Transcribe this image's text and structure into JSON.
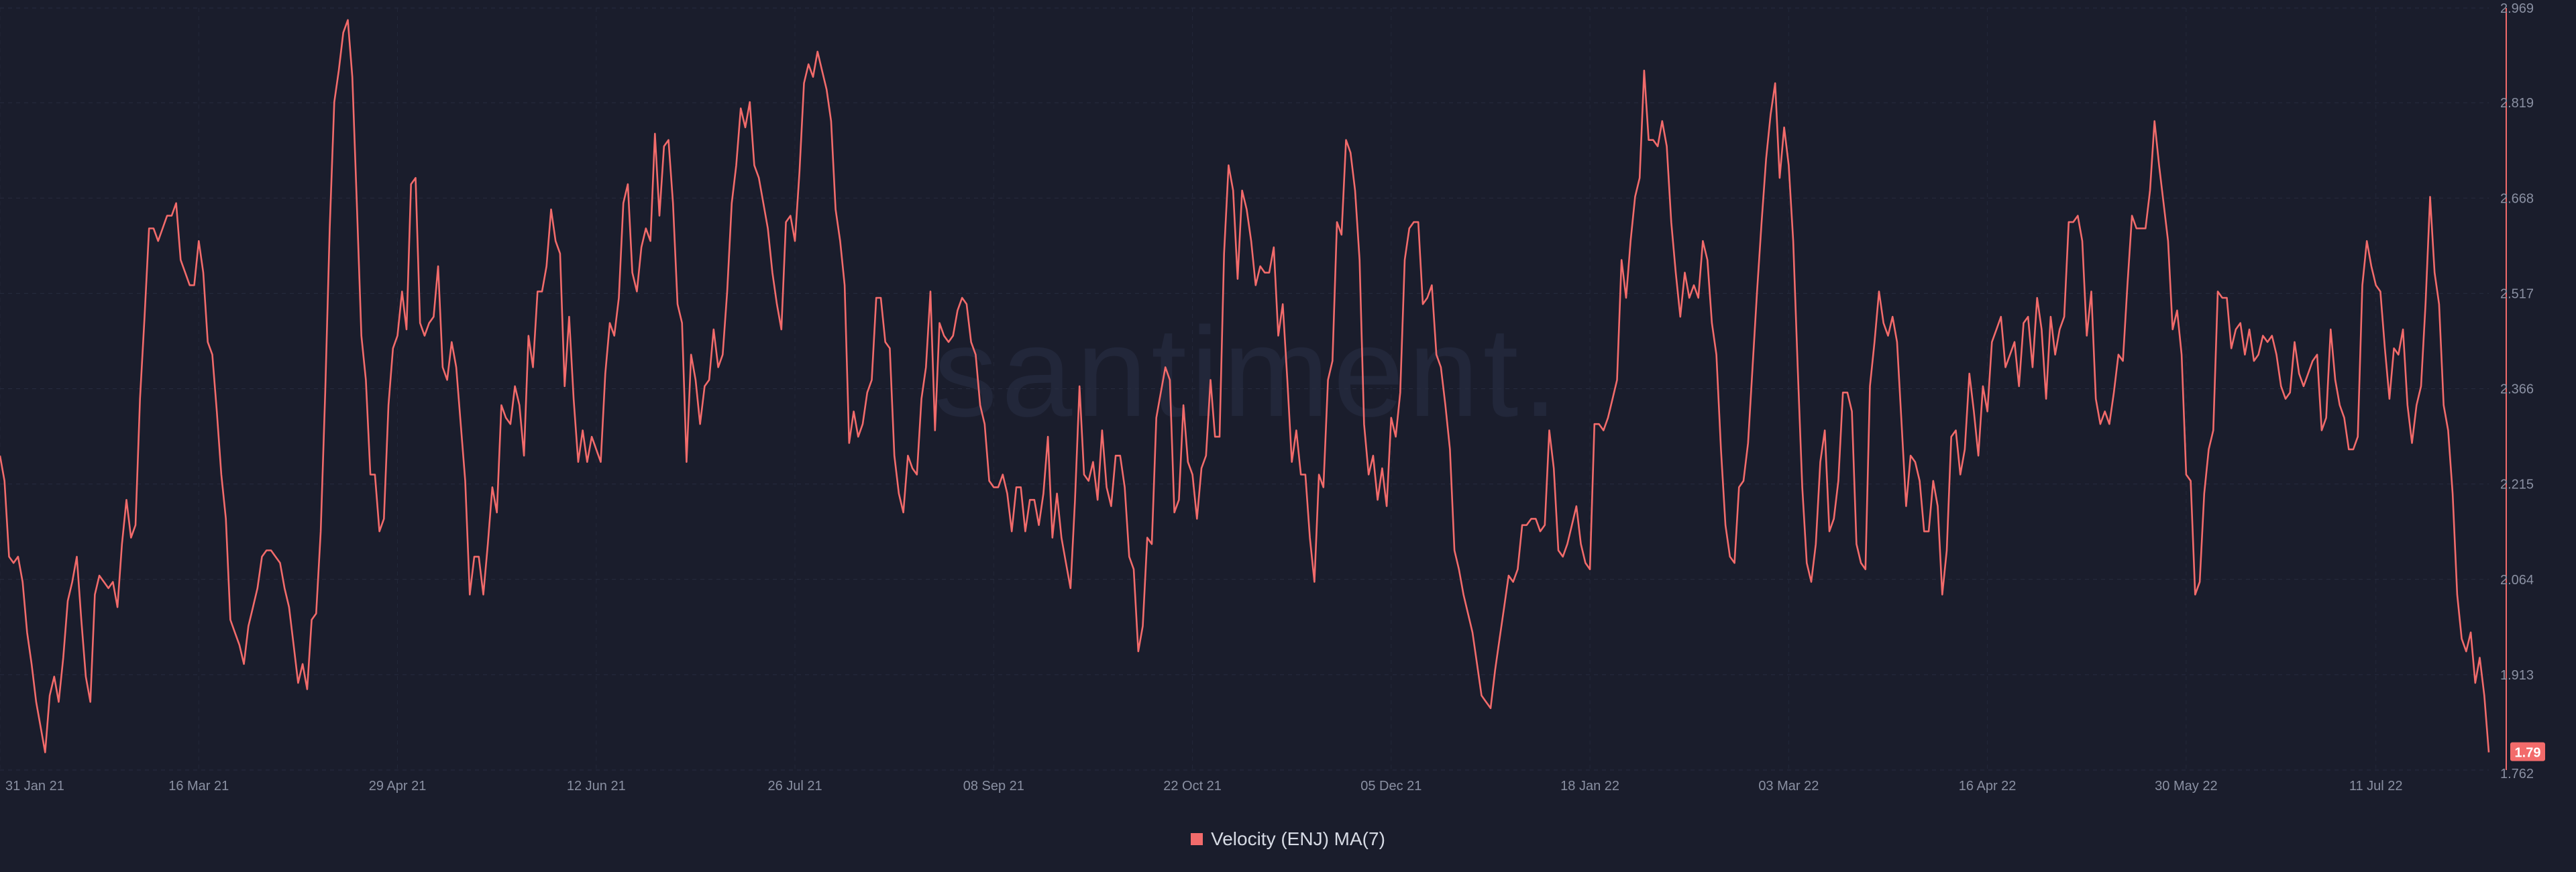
{
  "chart_data": {
    "type": "line",
    "watermark": "santiment.",
    "series": [
      {
        "name": "Velocity (ENJ) MA(7)",
        "color": "#f26b6b",
        "last_value_label": "1.79",
        "values": [
          2.26,
          2.22,
          2.1,
          2.09,
          2.1,
          2.06,
          1.98,
          1.93,
          1.87,
          1.83,
          1.79,
          1.88,
          1.91,
          1.87,
          1.94,
          2.03,
          2.06,
          2.1,
          2.0,
          1.91,
          1.87,
          2.04,
          2.07,
          2.06,
          2.05,
          2.06,
          2.02,
          2.12,
          2.19,
          2.13,
          2.15,
          2.35,
          2.48,
          2.62,
          2.62,
          2.6,
          2.62,
          2.64,
          2.64,
          2.66,
          2.57,
          2.55,
          2.53,
          2.53,
          2.6,
          2.55,
          2.44,
          2.42,
          2.33,
          2.23,
          2.16,
          2.0,
          1.98,
          1.96,
          1.93,
          1.99,
          2.02,
          2.05,
          2.1,
          2.11,
          2.11,
          2.1,
          2.09,
          2.05,
          2.02,
          1.96,
          1.9,
          1.93,
          1.89,
          2.0,
          2.01,
          2.14,
          2.36,
          2.62,
          2.82,
          2.87,
          2.93,
          2.95,
          2.86,
          2.66,
          2.45,
          2.38,
          2.23,
          2.23,
          2.14,
          2.16,
          2.34,
          2.43,
          2.45,
          2.52,
          2.46,
          2.69,
          2.7,
          2.47,
          2.45,
          2.47,
          2.48,
          2.56,
          2.4,
          2.38,
          2.44,
          2.4,
          2.31,
          2.22,
          2.04,
          2.1,
          2.1,
          2.04,
          2.12,
          2.21,
          2.17,
          2.34,
          2.32,
          2.31,
          2.37,
          2.34,
          2.26,
          2.45,
          2.4,
          2.52,
          2.52,
          2.56,
          2.65,
          2.6,
          2.58,
          2.37,
          2.48,
          2.35,
          2.25,
          2.3,
          2.25,
          2.29,
          2.27,
          2.25,
          2.39,
          2.47,
          2.45,
          2.51,
          2.66,
          2.69,
          2.55,
          2.52,
          2.59,
          2.62,
          2.6,
          2.77,
          2.64,
          2.75,
          2.76,
          2.66,
          2.5,
          2.47,
          2.25,
          2.42,
          2.38,
          2.31,
          2.37,
          2.38,
          2.46,
          2.4,
          2.42,
          2.52,
          2.66,
          2.72,
          2.81,
          2.78,
          2.82,
          2.72,
          2.7,
          2.66,
          2.62,
          2.55,
          2.5,
          2.46,
          2.63,
          2.64,
          2.6,
          2.71,
          2.85,
          2.88,
          2.86,
          2.9,
          2.87,
          2.84,
          2.79,
          2.65,
          2.6,
          2.53,
          2.28,
          2.33,
          2.29,
          2.31,
          2.36,
          2.38,
          2.51,
          2.51,
          2.44,
          2.43,
          2.26,
          2.2,
          2.17,
          2.26,
          2.24,
          2.23,
          2.35,
          2.4,
          2.52,
          2.3,
          2.47,
          2.45,
          2.44,
          2.45,
          2.49,
          2.51,
          2.5,
          2.44,
          2.42,
          2.34,
          2.31,
          2.22,
          2.21,
          2.21,
          2.23,
          2.2,
          2.14,
          2.21,
          2.21,
          2.14,
          2.19,
          2.19,
          2.15,
          2.2,
          2.29,
          2.13,
          2.2,
          2.13,
          2.09,
          2.05,
          2.19,
          2.37,
          2.23,
          2.22,
          2.25,
          2.19,
          2.3,
          2.21,
          2.18,
          2.26,
          2.26,
          2.21,
          2.1,
          2.08,
          1.95,
          1.99,
          2.13,
          2.12,
          2.32,
          2.36,
          2.4,
          2.38,
          2.17,
          2.19,
          2.34,
          2.25,
          2.23,
          2.16,
          2.24,
          2.26,
          2.38,
          2.29,
          2.29,
          2.58,
          2.72,
          2.68,
          2.54,
          2.68,
          2.65,
          2.6,
          2.53,
          2.56,
          2.55,
          2.55,
          2.59,
          2.45,
          2.5,
          2.38,
          2.25,
          2.3,
          2.23,
          2.23,
          2.13,
          2.06,
          2.23,
          2.21,
          2.38,
          2.41,
          2.63,
          2.61,
          2.76,
          2.74,
          2.68,
          2.57,
          2.31,
          2.23,
          2.26,
          2.19,
          2.24,
          2.18,
          2.32,
          2.29,
          2.36,
          2.57,
          2.62,
          2.63,
          2.63,
          2.5,
          2.51,
          2.53,
          2.42,
          2.4,
          2.34,
          2.27,
          2.11,
          2.08,
          2.04,
          2.01,
          1.98,
          1.93,
          1.88,
          1.87,
          1.86,
          1.92,
          1.97,
          2.02,
          2.07,
          2.06,
          2.08,
          2.15,
          2.15,
          2.16,
          2.16,
          2.14,
          2.15,
          2.3,
          2.24,
          2.11,
          2.1,
          2.12,
          2.15,
          2.18,
          2.12,
          2.09,
          2.08,
          2.31,
          2.31,
          2.3,
          2.32,
          2.35,
          2.38,
          2.57,
          2.51,
          2.6,
          2.67,
          2.7,
          2.87,
          2.76,
          2.76,
          2.75,
          2.79,
          2.75,
          2.63,
          2.55,
          2.48,
          2.55,
          2.51,
          2.53,
          2.51,
          2.6,
          2.57,
          2.47,
          2.42,
          2.27,
          2.15,
          2.1,
          2.09,
          2.21,
          2.22,
          2.28,
          2.4,
          2.52,
          2.63,
          2.73,
          2.8,
          2.85,
          2.7,
          2.78,
          2.72,
          2.6,
          2.4,
          2.21,
          2.09,
          2.06,
          2.12,
          2.25,
          2.3,
          2.14,
          2.16,
          2.22,
          2.36,
          2.36,
          2.33,
          2.12,
          2.09,
          2.08,
          2.37,
          2.44,
          2.52,
          2.47,
          2.45,
          2.48,
          2.44,
          2.31,
          2.18,
          2.26,
          2.25,
          2.22,
          2.14,
          2.14,
          2.22,
          2.18,
          2.04,
          2.11,
          2.29,
          2.3,
          2.23,
          2.27,
          2.39,
          2.33,
          2.26,
          2.37,
          2.33,
          2.44,
          2.46,
          2.48,
          2.4,
          2.42,
          2.44,
          2.37,
          2.47,
          2.48,
          2.4,
          2.51,
          2.46,
          2.35,
          2.48,
          2.42,
          2.46,
          2.48,
          2.63,
          2.63,
          2.64,
          2.6,
          2.45,
          2.52,
          2.35,
          2.31,
          2.33,
          2.31,
          2.36,
          2.42,
          2.41,
          2.53,
          2.64,
          2.62,
          2.62,
          2.62,
          2.68,
          2.79,
          2.72,
          2.66,
          2.6,
          2.46,
          2.49,
          2.42,
          2.23,
          2.22,
          2.04,
          2.06,
          2.2,
          2.27,
          2.3,
          2.52,
          2.51,
          2.51,
          2.43,
          2.46,
          2.47,
          2.42,
          2.46,
          2.41,
          2.42,
          2.45,
          2.44,
          2.45,
          2.42,
          2.37,
          2.35,
          2.36,
          2.44,
          2.39,
          2.37,
          2.39,
          2.41,
          2.42,
          2.3,
          2.32,
          2.46,
          2.38,
          2.34,
          2.32,
          2.27,
          2.27,
          2.29,
          2.53,
          2.6,
          2.56,
          2.53,
          2.52,
          2.43,
          2.35,
          2.43,
          2.42,
          2.46,
          2.34,
          2.28,
          2.34,
          2.37,
          2.5,
          2.67,
          2.55,
          2.5,
          2.34,
          2.3,
          2.2,
          2.04,
          1.97,
          1.95,
          1.98,
          1.9,
          1.94,
          1.88,
          1.79
        ]
      }
    ],
    "xaxis": {
      "ticks": [
        {
          "label": "31 Jan 21",
          "index": 0
        },
        {
          "label": "16 Mar 21",
          "index": 44
        },
        {
          "label": "29 Apr 21",
          "index": 88
        },
        {
          "label": "12 Jun 21",
          "index": 132
        },
        {
          "label": "26 Jul 21",
          "index": 176
        },
        {
          "label": "08 Sep 21",
          "index": 220
        },
        {
          "label": "22 Oct 21",
          "index": 264
        },
        {
          "label": "05 Dec 21",
          "index": 308
        },
        {
          "label": "18 Jan 22",
          "index": 352
        },
        {
          "label": "03 Mar 22",
          "index": 396
        },
        {
          "label": "16 Apr 22",
          "index": 440
        },
        {
          "label": "30 May 22",
          "index": 484
        },
        {
          "label": "11 Jul 22",
          "index": 526
        }
      ]
    },
    "yaxis": {
      "min": 1.762,
      "max": 2.969,
      "ticks": [
        "2.969",
        "2.819",
        "2.668",
        "2.517",
        "2.366",
        "2.215",
        "2.064",
        "1.913",
        "1.762"
      ]
    },
    "grid": true,
    "legend": "bottom-center"
  }
}
